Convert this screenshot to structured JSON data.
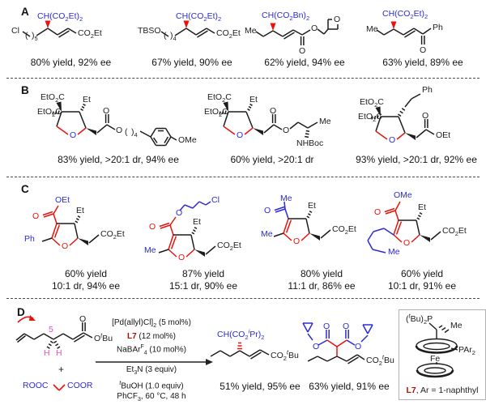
{
  "palette": {
    "blue": "#2b2bd5",
    "red": "#e8130c",
    "magenta": "#e44fc3",
    "dark_red": "#a81205"
  },
  "panels": {
    "a": {
      "letter": "A",
      "items": [
        {
          "left": "Cl",
          "open_paren": "(",
          "close_paren": ")<sub>5</sub>",
          "head": "CH(CO<sub>2</sub>Et)<sub>2</sub>",
          "tail": "CO<sub>2</sub>Et",
          "result": "80% yield, 92% ee"
        },
        {
          "left": "TBSO",
          "open_paren": "(",
          "close_paren": ")<sub>4</sub>",
          "head": "CH(CO<sub>2</sub>Et)<sub>2</sub>",
          "tail": "CO<sub>2</sub>Et",
          "result": "67% yield, 90% ee"
        },
        {
          "left": "Me",
          "head": "CH(CO<sub>2</sub>Bn)<sub>2</sub>",
          "o_carbonyl": "O",
          "o_ester": "O",
          "o_ring": "O",
          "result": "62% yield, 94% ee"
        },
        {
          "left": "Me",
          "head": "CH(CO<sub>2</sub>Et)<sub>2</sub>",
          "o_carbonyl": "O",
          "tail": "Ph",
          "result": "63% yield, 89% ee"
        }
      ]
    },
    "b": {
      "letter": "B",
      "items": [
        {
          "ester_top": "EtO<sub>2</sub>C",
          "ester_left": "EtO<sub>2</sub>C",
          "et": "Et",
          "o_carbonyl": "O",
          "o_ester": "O",
          "open_paren": "(",
          "close_paren": ")<sub>4</sub>",
          "ome": "OMe",
          "o_ring": "O",
          "result": "83% yield, >20:1 dr, 94% ee"
        },
        {
          "ester_top": "EtO<sub>2</sub>C",
          "ester_left": "EtO<sub>2</sub>C",
          "et": "Et",
          "o_carbonyl": "O",
          "o_ester": "O",
          "me": "Me",
          "nhboc": "NHBoc",
          "o_ring": "O",
          "result": "60% yield, >20:1 dr"
        },
        {
          "ester_top": "EtO<sub>2</sub>C",
          "ester_left": "EtO<sub>2</sub>C",
          "ph": "Ph",
          "o_carbonyl": "O",
          "oet": "OEt",
          "o_ring": "O",
          "result": "93% yield, >20:1 dr, 92% ee"
        }
      ]
    },
    "c": {
      "letter": "C",
      "items": [
        {
          "ester": "OEt",
          "o_carbonyl": "O",
          "et": "Et",
          "co2et": "CO<sub>2</sub>Et",
          "c2_sub": "Ph",
          "o_ring": "O",
          "result_line1": "60% yield",
          "result_line2": "10:1 dr, 94% ee"
        },
        {
          "o_ester": "O",
          "cl": "Cl",
          "o_carbonyl": "O",
          "et": "Et",
          "co2et": "CO<sub>2</sub>Et",
          "c2_sub": "Me",
          "o_ring": "O",
          "result_line1": "87% yield",
          "result_line2": "15:1 dr, 90% ee"
        },
        {
          "me_acyl": "Me",
          "o_carbonyl": "O",
          "et": "Et",
          "co2et": "CO<sub>2</sub>Et",
          "c2_sub": "Me",
          "o_ring": "O",
          "result_line1": "80% yield",
          "result_line2": "11:1 dr, 86% ee"
        },
        {
          "ester": "OMe",
          "o_carbonyl": "O",
          "et": "Et",
          "co2et": "CO<sub>2</sub>Et",
          "chain_me": "Me",
          "o_ring": "O",
          "result_line1": "60% yield",
          "result_line2": "10:1 dr, 91% ee"
        }
      ]
    },
    "d": {
      "letter": "D",
      "substrate": {
        "position_label": "5",
        "h_left": "H",
        "h_right": "H",
        "o_carbonyl": "O",
        "ester": "O<sup><i>t</i></sup>Bu"
      },
      "plus": "+",
      "malonate": {
        "left": "ROOC",
        "right": "COOR"
      },
      "conditions": {
        "line1": "[Pd(allyl)Cl]<sub>2</sub> (5 mol%)",
        "line2": "<span class='dr'>L7</span> (12 mol%)",
        "line3": "NaBAr<sup>F</sup><sub>4</sub> (10 mol%)",
        "line4": "Et<sub>3</sub>N (3 equiv)",
        "line5": "<sup><i>t</i></sup>BuOH (1.0 equiv)",
        "line6": "PhCF<sub>3</sub>, 60 °C, 48 h"
      },
      "products": [
        {
          "head": "CH(CO<sub>2</sub><sup><i>i</i></sup>Pr)<sub>2</sub>",
          "tail": "CO<sub>2</sub><sup><i>t</i></sup>Bu",
          "result": "51% yield, 95% ee"
        },
        {
          "o_left_carbonyl": "O",
          "o_right_carbonyl": "O",
          "o_left_ester": "O",
          "o_right_ester": "O",
          "tail": "CO<sub>2</sub><sup><i>t</i></sup>Bu",
          "result": "63% yield, 91% ee"
        }
      ],
      "ligand": {
        "phosphine": "(<sup><i>t</i></sup>Bu)<sub>2</sub>P",
        "me": "Me",
        "par": "PAr<sub>2</sub>",
        "fe": "Fe",
        "name": "L7",
        "caption_rest": ", Ar = 1-naphthyl"
      }
    }
  }
}
